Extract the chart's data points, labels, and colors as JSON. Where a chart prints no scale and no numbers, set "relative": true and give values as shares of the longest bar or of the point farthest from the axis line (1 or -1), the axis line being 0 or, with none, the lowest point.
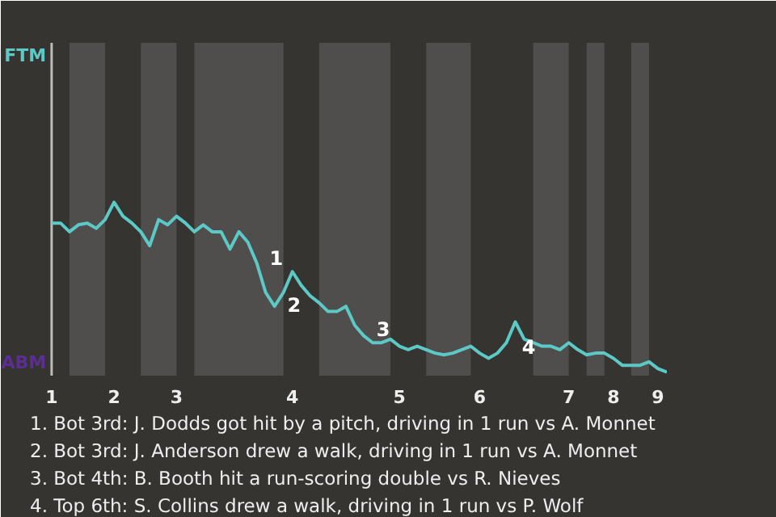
{
  "chart_data": {
    "type": "line",
    "relative": true,
    "categories": [
      "1",
      null,
      null,
      null,
      null,
      null,
      null,
      "2",
      null,
      null,
      null,
      null,
      null,
      null,
      "3",
      null,
      null,
      null,
      null,
      null,
      null,
      null,
      null,
      null,
      null,
      null,
      null,
      "4",
      null,
      null,
      null,
      null,
      null,
      null,
      null,
      null,
      null,
      null,
      null,
      "5",
      null,
      null,
      null,
      null,
      null,
      null,
      null,
      null,
      "6",
      null,
      null,
      null,
      null,
      null,
      null,
      null,
      null,
      null,
      "7",
      null,
      null,
      null,
      null,
      "8",
      null,
      null,
      null,
      null,
      "9",
      null
    ],
    "series": [
      {
        "color": "#5cc9c6",
        "values": [
          0.88,
          0.88,
          0.83,
          0.87,
          0.88,
          0.85,
          0.9,
          1,
          0.92,
          0.88,
          0.83,
          0.75,
          0.9,
          0.87,
          0.92,
          0.88,
          0.83,
          0.87,
          0.83,
          0.83,
          0.73,
          0.83,
          0.77,
          0.65,
          0.48,
          0.4,
          0.48,
          0.6,
          0.52,
          0.46,
          0.42,
          0.37,
          0.37,
          0.4,
          0.29,
          0.23,
          0.19,
          0.19,
          0.21,
          0.17,
          0.15,
          0.17,
          0.15,
          0.13,
          0.12,
          0.13,
          0.15,
          0.17,
          0.13,
          0.1,
          0.13,
          0.19,
          0.31,
          0.21,
          0.19,
          0.17,
          0.17,
          0.15,
          0.19,
          0.15,
          0.12,
          0.13,
          0.13,
          0.1,
          0.06,
          0.06,
          0.06,
          0.08,
          0.04,
          0.02
        ],
        "colors": [
          "#5cc9c6",
          "#5cc9c6",
          "#5b2e91",
          "#5b2e91",
          "#5b2e91",
          "#5b2e91",
          "#5cc9c6",
          "#5cc9c6",
          "#5cc9c6",
          "#5cc9c6",
          "#5b2e91",
          "#5b2e91",
          "#5b2e91",
          "#5b2e91",
          "#5cc9c6",
          "#5cc9c6",
          "#5b2e91",
          "#5b2e91",
          "#5b2e91",
          "#5b2e91",
          "#5b2e91",
          "#5b2e91",
          "#5b2e91",
          "#5b2e91",
          "#5b2e91",
          "#5b2e91",
          "#5cc9c6",
          "#5cc9c6",
          "#5cc9c6",
          "#5cc9c6",
          "#5b2e91",
          "#5b2e91",
          "#5b2e91",
          "#5b2e91",
          "#5b2e91",
          "#5b2e91",
          "#5b2e91",
          "#5b2e91",
          "#5cc9c6",
          "#5cc9c6",
          "#5cc9c6",
          "#5cc9c6",
          "#5b2e91",
          "#5b2e91",
          "#5b2e91",
          "#5b2e91",
          "#5b2e91",
          "#5cc9c6",
          "#5cc9c6",
          "#5cc9c6",
          "#5cc9c6",
          "#5cc9c6",
          "#5cc9c6",
          "#5cc9c6",
          "#5b2e91",
          "#5b2e91",
          "#5b2e91",
          "#5b2e91",
          "#5cc9c6",
          "#5cc9c6",
          "#5b2e91",
          "#5b2e91",
          "#5cc9c6",
          "#5cc9c6",
          "#5cc9c6",
          "#5b2e91",
          "#5b2e91",
          "#5cc9c6",
          "#5cc9c6",
          "#5cc9c6"
        ]
      }
    ],
    "annotations": [
      "FTM",
      "ABM",
      "1",
      "2",
      "3",
      "4",
      "1. Bot 3rd: J. Dodds got hit by a pitch, driving in 1 run vs A. Monnet",
      "2. Bot 3rd: J. Anderson drew a walk, driving in 1 run vs A. Monnet",
      "3. Bot 4th: B. Booth hit a run-scoring double vs R. Nieves",
      "4. Top 6th: S. Collins drew a walk, driving in 1 run vs P. Wolf"
    ]
  }
}
